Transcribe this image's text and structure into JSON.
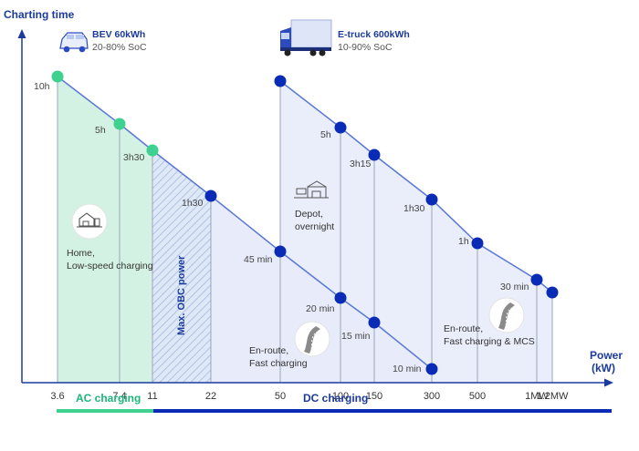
{
  "chart_data": {
    "type": "line",
    "ylabel": "Charting time",
    "xlabel_line1": "Power",
    "xlabel_line2": "(kW)",
    "categories": [
      "3.6",
      "7.4",
      "11",
      "22",
      "50",
      "100",
      "150",
      "300",
      "500",
      "1MW",
      "1.2MW"
    ],
    "series": [
      {
        "name": "BEV 60kWh",
        "subtitle": "20-80% SoC",
        "points": [
          {
            "x": "3.6",
            "label": "10h",
            "color": "#3fd18f"
          },
          {
            "x": "7.4",
            "label": "5h",
            "color": "#3fd18f"
          },
          {
            "x": "11",
            "label": "3h30",
            "color": "#3fd18f"
          },
          {
            "x": "22",
            "label": "1h30",
            "color": "#0a2bb5"
          },
          {
            "x": "50",
            "label": "45 min",
            "color": "#0a2bb5"
          },
          {
            "x": "100",
            "label": "20 min",
            "color": "#0a2bb5"
          },
          {
            "x": "150",
            "label": "15 min",
            "color": "#0a2bb5"
          },
          {
            "x": "300",
            "label": "10 min",
            "color": "#0a2bb5"
          }
        ]
      },
      {
        "name": "E-truck 600kWh",
        "subtitle": "10-90% SoC",
        "points": [
          {
            "x": "50",
            "label": "",
            "color": "#0a2bb5"
          },
          {
            "x": "100",
            "label": "5h",
            "color": "#0a2bb5"
          },
          {
            "x": "150",
            "label": "3h15",
            "color": "#0a2bb5"
          },
          {
            "x": "300",
            "label": "1h30",
            "color": "#0a2bb5"
          },
          {
            "x": "500",
            "label": "1h",
            "color": "#0a2bb5"
          },
          {
            "x": "1MW",
            "label": "30 min",
            "color": "#0a2bb5"
          },
          {
            "x": "1.2MW",
            "label": "",
            "color": "#0a2bb5"
          }
        ]
      }
    ],
    "annotations": {
      "home_line1": "Home,",
      "home_line2": "Low-speed charging",
      "obc": "Max. OBC power",
      "depot_line1": "Depot,",
      "depot_line2": "overnight",
      "enroute_line1": "En-route,",
      "enroute_line2": "Fast charging",
      "enroute_truck_line1": "En-route,",
      "enroute_truck_line2": "Fast charging & MCS"
    },
    "bands": [
      {
        "name": "AC charging",
        "color": "#3fd18f"
      },
      {
        "name": "DC charging",
        "color": "#0a2bb5"
      }
    ],
    "colors": {
      "ac_fill": "#d4f2e3",
      "dc_fill": "#e8ebfa",
      "line": "#5a78d6",
      "axis": "#1b3a9e"
    }
  }
}
